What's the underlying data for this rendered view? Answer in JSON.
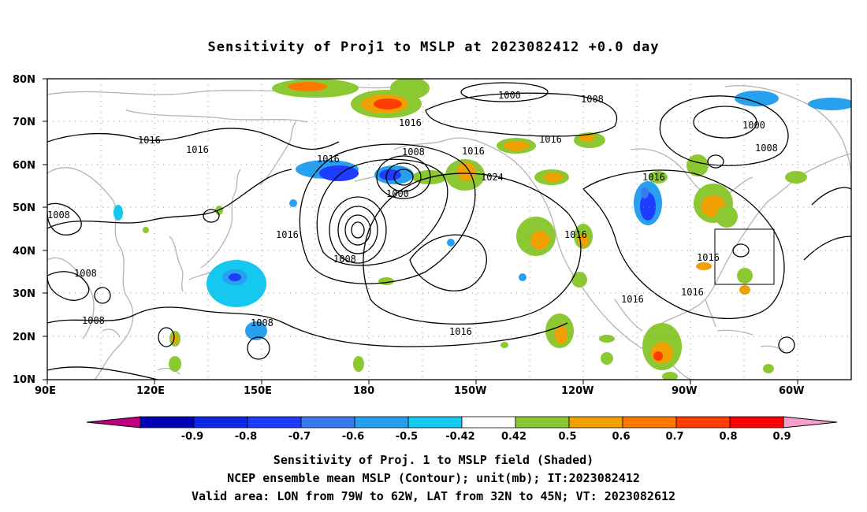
{
  "title": "Sensitivity of Proj1 to MSLP at 2023082412 +0.0 day",
  "map": {
    "lon_labels": [
      "90E",
      "120E",
      "150E",
      "180",
      "150W",
      "120W",
      "90W",
      "60W"
    ],
    "lat_labels": [
      "80N",
      "70N",
      "60N",
      "50N",
      "40N",
      "30N",
      "20N",
      "10N"
    ],
    "contour_labels": [
      {
        "text": "1000"
      },
      {
        "text": "1008"
      },
      {
        "text": "1016"
      },
      {
        "text": "1016"
      },
      {
        "text": "1016"
      },
      {
        "text": "1008"
      },
      {
        "text": "1016"
      },
      {
        "text": "1000"
      },
      {
        "text": "1016"
      },
      {
        "text": "1024"
      },
      {
        "text": "1016"
      },
      {
        "text": "1016"
      },
      {
        "text": "1016"
      },
      {
        "text": "1008"
      },
      {
        "text": "1000"
      },
      {
        "text": "1008"
      },
      {
        "text": "1008"
      },
      {
        "text": "1008"
      },
      {
        "text": "1008"
      },
      {
        "text": "1016"
      },
      {
        "text": "1016"
      },
      {
        "text": "1016"
      },
      {
        "text": "1016"
      },
      {
        "text": "1016"
      },
      {
        "text": "1008"
      },
      {
        "text": "1008"
      }
    ],
    "valid_area": {
      "lon_from": "79W",
      "lon_to": "62W",
      "lat_from": "32N",
      "lat_to": "45N"
    }
  },
  "colorbar": {
    "labels": [
      "-0.9",
      "-0.8",
      "-0.7",
      "-0.6",
      "-0.5",
      "-0.42",
      "0.42",
      "0.5",
      "0.6",
      "0.7",
      "0.8",
      "0.9"
    ],
    "colors": [
      "#0000b4",
      "#0a28e6",
      "#1e3cff",
      "#3c78f0",
      "#28a0f0",
      "#14c8f0",
      "#ffffff",
      "#8cc832",
      "#f0a000",
      "#ff7800",
      "#ff3c00",
      "#ff0000"
    ],
    "low_arrow_color": "#c00080",
    "high_arrow_color": "#f5a0c8"
  },
  "footer": {
    "line1": "Sensitivity of Proj. 1 to MSLP field (Shaded)",
    "line2": "NCEP ensemble mean MSLP (Contour); unit(mb); IT:2023082412",
    "line3": "Valid area: LON from 79W to 62W, LAT from 32N to 45N; VT: 2023082612"
  }
}
